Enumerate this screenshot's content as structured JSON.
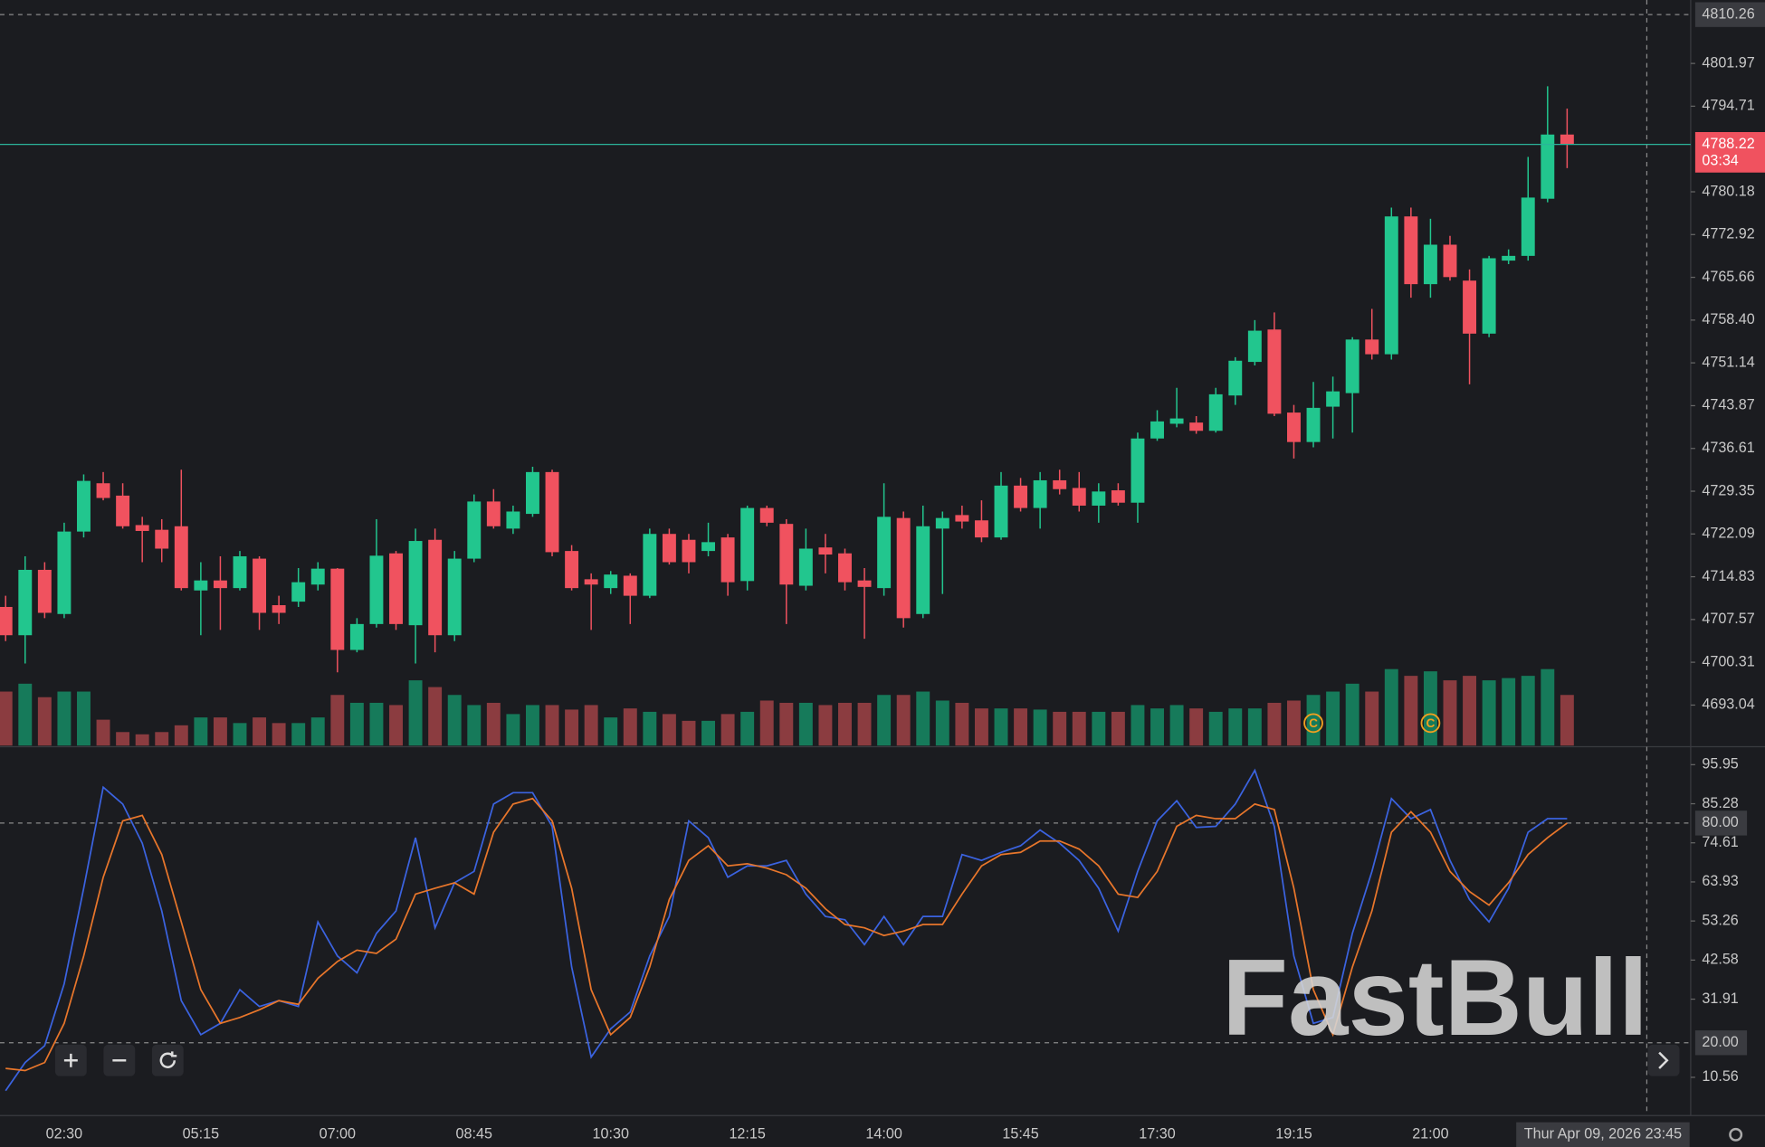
{
  "watermark": "FastBull",
  "chart_data": [
    {
      "type": "candlestick",
      "categories": [
        null,
        null,
        null,
        "02:30",
        null,
        null,
        null,
        null,
        null,
        null,
        "05:15",
        null,
        null,
        null,
        null,
        null,
        null,
        "07:00",
        null,
        null,
        null,
        null,
        null,
        null,
        "08:45",
        null,
        null,
        null,
        null,
        null,
        null,
        "10:30",
        null,
        null,
        null,
        null,
        null,
        null,
        "12:15",
        null,
        null,
        null,
        null,
        null,
        null,
        "14:00",
        null,
        null,
        null,
        null,
        null,
        null,
        "15:45",
        null,
        null,
        null,
        null,
        null,
        null,
        "17:30",
        null,
        null,
        null,
        null,
        null,
        null,
        "19:15",
        null,
        null,
        null,
        null,
        null,
        null,
        "21:00",
        null,
        null,
        null,
        null,
        null,
        null,
        null
      ],
      "ohlc": [
        [
          4709.7,
          4711.6,
          4703.9,
          4704.9
        ],
        [
          4704.9,
          4718.3,
          4700.1,
          4716.0
        ],
        [
          4716.0,
          4717.3,
          4707.8,
          4708.7
        ],
        [
          4708.5,
          4724.0,
          4707.8,
          4722.5
        ],
        [
          4722.5,
          4732.2,
          4721.5,
          4731.1
        ],
        [
          4730.7,
          4732.6,
          4727.8,
          4728.2
        ],
        [
          4728.6,
          4730.7,
          4723.0,
          4723.4
        ],
        [
          4723.6,
          4725.0,
          4717.3,
          4722.6
        ],
        [
          4722.8,
          4724.6,
          4717.3,
          4719.6
        ],
        [
          4723.4,
          4733.0,
          4712.5,
          4712.9
        ],
        [
          4712.5,
          4717.3,
          4704.9,
          4714.2
        ],
        [
          4714.2,
          4718.3,
          4705.8,
          4712.9
        ],
        [
          4712.9,
          4719.2,
          4712.5,
          4718.3
        ],
        [
          4717.9,
          4718.3,
          4705.8,
          4708.7
        ],
        [
          4710.0,
          4711.6,
          4706.8,
          4708.7
        ],
        [
          4710.6,
          4716.3,
          4709.7,
          4713.9
        ],
        [
          4713.5,
          4717.3,
          4712.5,
          4716.2
        ],
        [
          4716.2,
          4716.3,
          4698.6,
          4702.4
        ],
        [
          4702.4,
          4707.8,
          4702.0,
          4706.8
        ],
        [
          4706.8,
          4724.6,
          4706.2,
          4718.4
        ],
        [
          4718.8,
          4719.2,
          4705.8,
          4706.8
        ],
        [
          4706.6,
          4723.0,
          4700.1,
          4720.9
        ],
        [
          4721.1,
          4723.0,
          4702.0,
          4704.9
        ],
        [
          4704.9,
          4719.2,
          4703.9,
          4717.9
        ],
        [
          4717.9,
          4728.8,
          4717.3,
          4727.6
        ],
        [
          4727.6,
          4729.7,
          4723.0,
          4723.4
        ],
        [
          4723.0,
          4726.9,
          4722.1,
          4725.9
        ],
        [
          4725.5,
          4733.5,
          4725.0,
          4732.6
        ],
        [
          4732.6,
          4733.0,
          4718.3,
          4719.0
        ],
        [
          4719.2,
          4720.2,
          4712.5,
          4712.9
        ],
        [
          4714.4,
          4715.4,
          4705.8,
          4713.5
        ],
        [
          4712.9,
          4715.8,
          4711.9,
          4715.2
        ],
        [
          4715.0,
          4715.4,
          4706.8,
          4711.6
        ],
        [
          4711.6,
          4723.0,
          4711.2,
          4722.1
        ],
        [
          4722.1,
          4723.0,
          4716.9,
          4717.3
        ],
        [
          4721.1,
          4722.1,
          4715.4,
          4717.3
        ],
        [
          4719.2,
          4724.0,
          4718.3,
          4720.7
        ],
        [
          4721.5,
          4722.1,
          4711.6,
          4713.9
        ],
        [
          4714.1,
          4726.9,
          4712.5,
          4726.5
        ],
        [
          4726.5,
          4726.9,
          4723.4,
          4724.0
        ],
        [
          4723.8,
          4724.6,
          4706.8,
          4713.5
        ],
        [
          4713.3,
          4723.0,
          4712.5,
          4719.6
        ],
        [
          4719.8,
          4722.1,
          4715.4,
          4718.6
        ],
        [
          4718.8,
          4719.6,
          4712.5,
          4713.9
        ],
        [
          4714.2,
          4716.3,
          4704.3,
          4713.1
        ],
        [
          4712.9,
          4730.7,
          4711.6,
          4725.0
        ],
        [
          4724.8,
          4725.9,
          4706.2,
          4707.8
        ],
        [
          4708.5,
          4726.9,
          4707.8,
          4723.4
        ],
        [
          4723.0,
          4725.9,
          4711.9,
          4724.8
        ],
        [
          4725.3,
          4726.9,
          4723.0,
          4724.2
        ],
        [
          4724.4,
          4727.8,
          4720.7,
          4721.5
        ],
        [
          4721.5,
          4732.6,
          4721.1,
          4730.3
        ],
        [
          4730.3,
          4731.6,
          4725.9,
          4726.5
        ],
        [
          4726.5,
          4732.6,
          4723.0,
          4731.2
        ],
        [
          4731.2,
          4733.0,
          4728.8,
          4729.7
        ],
        [
          4729.9,
          4732.6,
          4725.9,
          4726.9
        ],
        [
          4726.9,
          4730.7,
          4724.0,
          4729.3
        ],
        [
          4729.5,
          4730.7,
          4726.9,
          4727.4
        ],
        [
          4727.4,
          4739.3,
          4724.0,
          4738.3
        ],
        [
          4738.3,
          4743.1,
          4737.9,
          4741.2
        ],
        [
          4740.8,
          4746.9,
          4740.2,
          4741.7
        ],
        [
          4741.0,
          4742.1,
          4739.1,
          4739.6
        ],
        [
          4739.6,
          4746.9,
          4739.3,
          4745.8
        ],
        [
          4745.6,
          4752.1,
          4744.0,
          4751.5
        ],
        [
          4751.3,
          4758.4,
          4750.7,
          4756.6
        ],
        [
          4756.8,
          4759.7,
          4742.1,
          4742.5
        ],
        [
          4742.7,
          4744.0,
          4734.9,
          4737.7
        ],
        [
          4737.7,
          4747.9,
          4736.8,
          4743.5
        ],
        [
          4743.7,
          4748.8,
          4738.3,
          4746.3
        ],
        [
          4746.0,
          4755.5,
          4739.3,
          4755.1
        ],
        [
          4755.1,
          4760.3,
          4751.7,
          4752.6
        ],
        [
          4752.6,
          4777.5,
          4751.7,
          4776.0
        ],
        [
          4776.0,
          4777.5,
          4762.2,
          4764.5
        ],
        [
          4764.5,
          4775.6,
          4762.2,
          4771.2
        ],
        [
          4771.2,
          4772.7,
          4765.1,
          4765.7
        ],
        [
          4765.1,
          4767.0,
          4747.5,
          4756.1
        ],
        [
          4756.1,
          4769.3,
          4755.5,
          4768.9
        ],
        [
          4768.5,
          4770.4,
          4767.9,
          4769.3
        ],
        [
          4769.3,
          4786.1,
          4768.5,
          4779.2
        ],
        [
          4779.0,
          4798.1,
          4778.4,
          4789.9
        ],
        [
          4789.9,
          4794.3,
          4784.2,
          4788.22
        ]
      ],
      "volume": [
        48,
        55,
        43,
        48,
        48,
        23,
        12,
        10,
        12,
        18,
        25,
        25,
        20,
        25,
        20,
        20,
        25,
        45,
        38,
        38,
        36,
        58,
        52,
        45,
        36,
        38,
        28,
        36,
        36,
        32,
        36,
        25,
        33,
        30,
        28,
        22,
        22,
        28,
        30,
        40,
        38,
        38,
        36,
        38,
        38,
        45,
        45,
        48,
        40,
        38,
        33,
        33,
        33,
        32,
        30,
        30,
        30,
        30,
        36,
        33,
        36,
        33,
        30,
        33,
        33,
        38,
        40,
        45,
        48,
        55,
        48,
        68,
        62,
        66,
        58,
        62,
        58,
        60,
        62,
        68,
        45
      ],
      "up_color": "#22c68e",
      "down_color": "#f0525f",
      "volume_up_color": "#167a5a",
      "volume_down_color": "#8b3c40",
      "events": [
        {
          "index": 67,
          "label": "C"
        },
        {
          "index": 73,
          "label": "C"
        }
      ],
      "ylim": [
        4686.17,
        4812.74
      ],
      "yticks": [
        4801.97,
        4794.71,
        4780.18,
        4772.92,
        4765.66,
        {
          "value": 4758.4,
          "label": "4758.40"
        },
        4751.14,
        4743.87,
        4736.61,
        4729.35,
        4722.09,
        4714.83,
        4707.57,
        4700.31,
        4693.04
      ],
      "last_price": 4788.22,
      "countdown": "03:34",
      "crosshair": {
        "price": 4810.26,
        "time": "Thur Apr 09, 2026 23:45"
      }
    },
    {
      "type": "line",
      "series": [
        {
          "color": "#3b63e0",
          "values": [
            6.9,
            14.6,
            19.2,
            36.1,
            62.2,
            89.8,
            85.2,
            74.5,
            56.0,
            31.5,
            22.2,
            25.3,
            34.5,
            29.9,
            31.5,
            29.9,
            53.0,
            43.7,
            39.1,
            49.9,
            56.0,
            76.0,
            51.4,
            63.7,
            66.8,
            85.2,
            88.3,
            88.3,
            79.1,
            40.7,
            16.1,
            23.8,
            28.4,
            43.7,
            54.5,
            80.6,
            76.0,
            65.2,
            68.3,
            68.3,
            69.8,
            60.6,
            54.5,
            53.6,
            46.8,
            54.5,
            46.8,
            54.5,
            54.5,
            71.4,
            69.8,
            72.0,
            73.8,
            78.1,
            74.5,
            69.8,
            62.2,
            50.5,
            66.8,
            80.6,
            86.1,
            78.8,
            79.1,
            85.2,
            94.4,
            79.1,
            43.7,
            25.3,
            26.9,
            49.9,
            66.8,
            86.7,
            81.2,
            83.7,
            69.8,
            59.1,
            53.0,
            62.2,
            77.5,
            81.2,
            81.2
          ]
        },
        {
          "color": "#e8762b",
          "values": [
            13.0,
            12.4,
            14.6,
            25.3,
            43.7,
            65.2,
            80.6,
            82.1,
            71.4,
            53.0,
            34.5,
            25.3,
            26.9,
            29.0,
            31.5,
            30.5,
            37.6,
            42.2,
            45.3,
            44.4,
            48.3,
            60.6,
            62.2,
            63.7,
            60.6,
            77.5,
            85.2,
            86.7,
            80.6,
            62.2,
            34.5,
            22.2,
            26.9,
            40.7,
            59.1,
            69.8,
            73.8,
            68.3,
            68.9,
            67.7,
            65.9,
            62.2,
            56.6,
            52.3,
            51.4,
            49.3,
            50.5,
            52.3,
            52.3,
            60.6,
            68.3,
            71.4,
            72.0,
            75.1,
            75.1,
            72.9,
            68.3,
            60.6,
            59.7,
            66.8,
            79.1,
            82.1,
            81.2,
            81.2,
            85.2,
            83.7,
            62.2,
            34.5,
            22.2,
            40.7,
            56.0,
            77.5,
            83.1,
            77.5,
            66.8,
            61.3,
            57.6,
            63.7,
            71.4,
            76.0,
            80.0
          ]
        }
      ],
      "ylim": [
        0.13,
        100.56
      ],
      "yticks": [
        95.95,
        85.28,
        74.61,
        63.93,
        53.26,
        42.58,
        31.91,
        10.56
      ],
      "levels": [
        {
          "value": 80,
          "label": "80.00"
        },
        {
          "value": 20,
          "label": "20.00"
        }
      ]
    }
  ]
}
